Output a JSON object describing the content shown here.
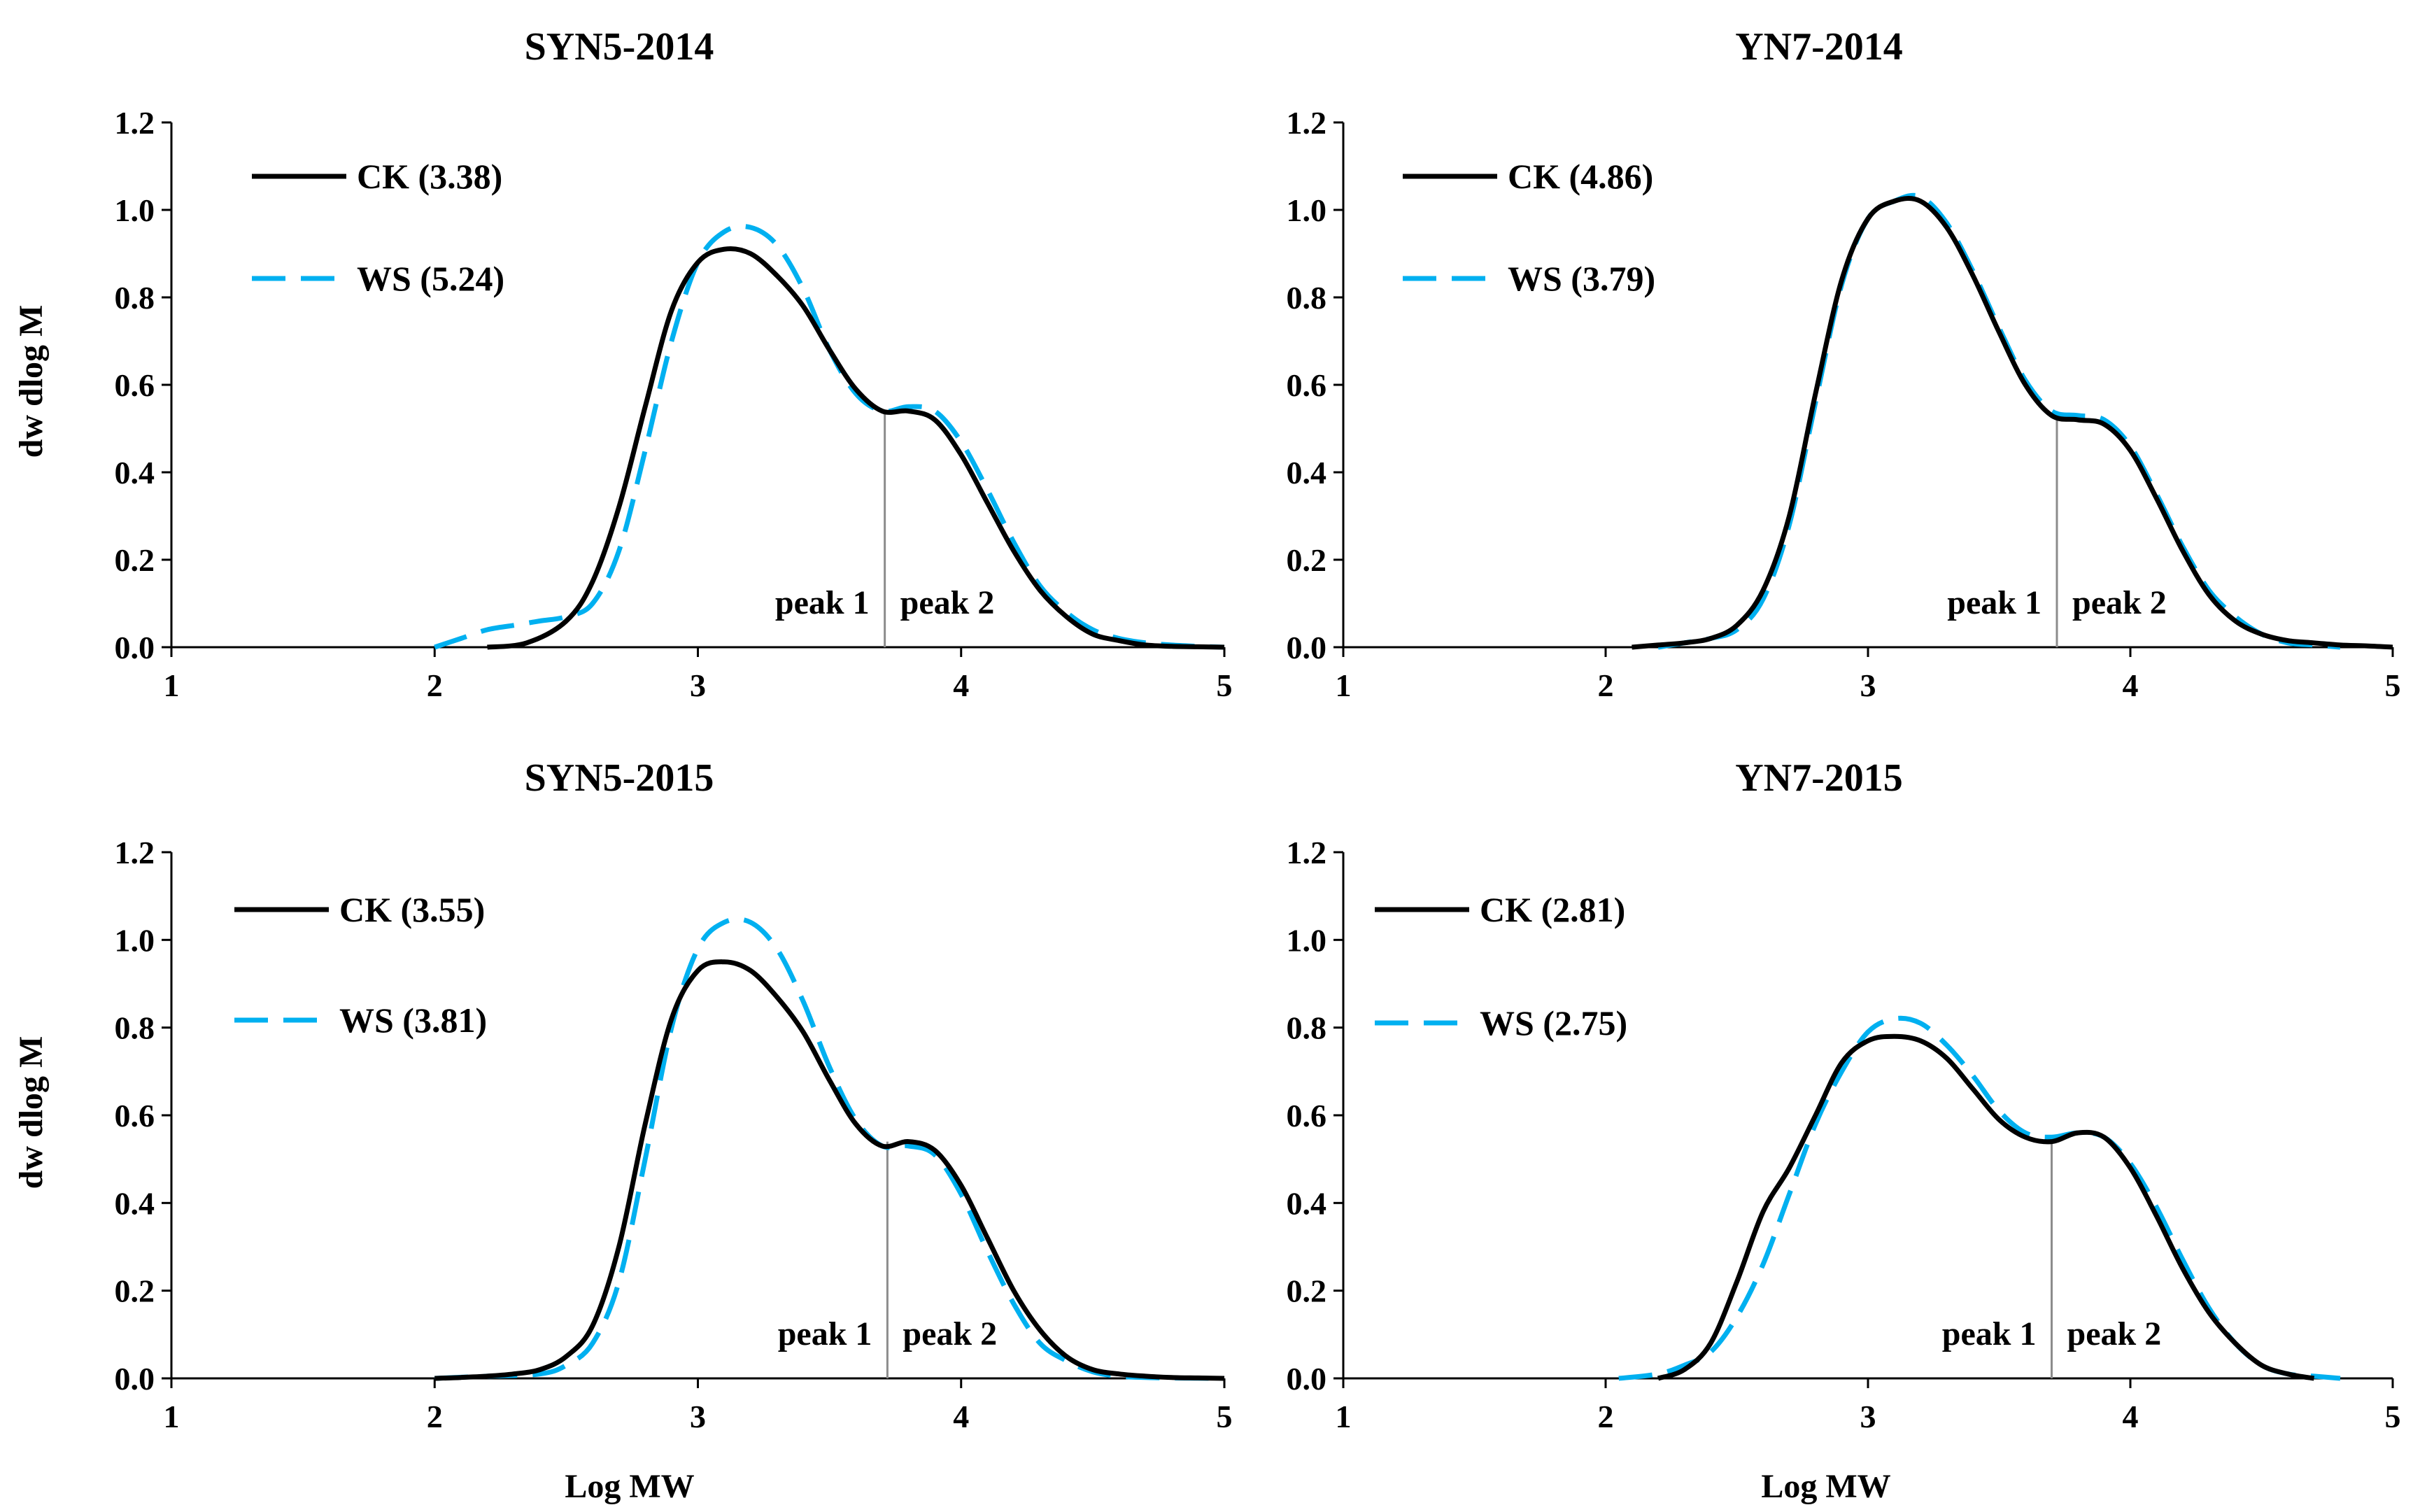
{
  "figure": {
    "ylabel": "dw dlog M",
    "xlabel": "Log MW"
  },
  "colors": {
    "ck": "#000000",
    "ws": "#00B0F0",
    "divider": "#8c8c8c"
  },
  "chart_data": [
    {
      "type": "line",
      "title": "SYN5-2014",
      "xlim": [
        1,
        5
      ],
      "ylim": [
        0,
        1.2
      ],
      "xticks": [
        "1",
        "2",
        "3",
        "4",
        "5"
      ],
      "yticks": [
        "0.0",
        "0.2",
        "0.4",
        "0.6",
        "0.8",
        "1.0",
        "1.2"
      ],
      "legend_position": "top-left",
      "divider_x": 3.71,
      "peak_labels": [
        "peak 1",
        "peak 2"
      ],
      "series": [
        {
          "name": "CK (3.38)",
          "style": "solid",
          "x": [
            2.2,
            2.35,
            2.5,
            2.6,
            2.7,
            2.8,
            2.9,
            3.0,
            3.1,
            3.2,
            3.3,
            3.4,
            3.5,
            3.6,
            3.7,
            3.8,
            3.9,
            4.0,
            4.1,
            4.2,
            4.3,
            4.4,
            4.5,
            4.6,
            4.7,
            4.8,
            4.9,
            5.0
          ],
          "y": [
            0.0,
            0.01,
            0.06,
            0.15,
            0.32,
            0.55,
            0.77,
            0.88,
            0.91,
            0.9,
            0.85,
            0.78,
            0.68,
            0.59,
            0.54,
            0.54,
            0.52,
            0.44,
            0.33,
            0.22,
            0.13,
            0.07,
            0.03,
            0.015,
            0.005,
            0.002,
            0.001,
            0.0
          ]
        },
        {
          "name": "WS (5.24)",
          "style": "dashed",
          "x": [
            2.0,
            2.1,
            2.2,
            2.3,
            2.4,
            2.5,
            2.6,
            2.7,
            2.8,
            2.9,
            3.0,
            3.1,
            3.2,
            3.3,
            3.4,
            3.5,
            3.6,
            3.7,
            3.8,
            3.9,
            4.0,
            4.1,
            4.2,
            4.3,
            4.4,
            4.5,
            4.6,
            4.7,
            4.8,
            4.9,
            5.0
          ],
          "y": [
            0.0,
            0.02,
            0.04,
            0.05,
            0.06,
            0.07,
            0.1,
            0.22,
            0.45,
            0.7,
            0.88,
            0.95,
            0.96,
            0.92,
            0.82,
            0.68,
            0.58,
            0.54,
            0.55,
            0.54,
            0.47,
            0.36,
            0.24,
            0.14,
            0.08,
            0.04,
            0.02,
            0.01,
            0.005,
            0.002,
            0.0
          ]
        }
      ]
    },
    {
      "type": "line",
      "title": "YN7-2014",
      "xlim": [
        1,
        5
      ],
      "ylim": [
        0,
        1.2
      ],
      "xticks": [
        "1",
        "2",
        "3",
        "4",
        "5"
      ],
      "yticks": [
        "0.0",
        "0.2",
        "0.4",
        "0.6",
        "0.8",
        "1.0",
        "1.2"
      ],
      "legend_position": "top-left",
      "divider_x": 3.72,
      "peak_labels": [
        "peak 1",
        "peak 2"
      ],
      "series": [
        {
          "name": "CK (4.86)",
          "style": "solid",
          "x": [
            2.1,
            2.2,
            2.3,
            2.4,
            2.5,
            2.6,
            2.7,
            2.8,
            2.9,
            3.0,
            3.1,
            3.2,
            3.3,
            3.4,
            3.5,
            3.6,
            3.7,
            3.8,
            3.9,
            4.0,
            4.1,
            4.2,
            4.3,
            4.4,
            4.5,
            4.6,
            4.7,
            4.8,
            4.9,
            5.0
          ],
          "y": [
            0.0,
            0.005,
            0.01,
            0.02,
            0.05,
            0.13,
            0.3,
            0.58,
            0.84,
            0.98,
            1.02,
            1.02,
            0.96,
            0.85,
            0.72,
            0.6,
            0.53,
            0.52,
            0.51,
            0.45,
            0.34,
            0.22,
            0.12,
            0.06,
            0.03,
            0.015,
            0.01,
            0.005,
            0.003,
            0.0
          ]
        },
        {
          "name": "WS (3.79)",
          "style": "dashed",
          "x": [
            2.2,
            2.3,
            2.4,
            2.5,
            2.6,
            2.7,
            2.8,
            2.9,
            3.0,
            3.1,
            3.2,
            3.3,
            3.4,
            3.5,
            3.6,
            3.7,
            3.8,
            3.9,
            4.0,
            4.1,
            4.2,
            4.3,
            4.4,
            4.5,
            4.6,
            4.7,
            4.8
          ],
          "y": [
            0.0,
            0.01,
            0.02,
            0.04,
            0.11,
            0.28,
            0.56,
            0.83,
            0.98,
            1.02,
            1.03,
            0.97,
            0.86,
            0.73,
            0.61,
            0.54,
            0.53,
            0.52,
            0.46,
            0.35,
            0.23,
            0.13,
            0.07,
            0.03,
            0.01,
            0.005,
            0.0
          ]
        }
      ]
    },
    {
      "type": "line",
      "title": "SYN5-2015",
      "xlim": [
        1,
        5
      ],
      "ylim": [
        0,
        1.2
      ],
      "xticks": [
        "1",
        "2",
        "3",
        "4",
        "5"
      ],
      "yticks": [
        "0.0",
        "0.2",
        "0.4",
        "0.6",
        "0.8",
        "1.0",
        "1.2"
      ],
      "legend_position": "top-left",
      "divider_x": 3.72,
      "peak_labels": [
        "peak 1",
        "peak 2"
      ],
      "series": [
        {
          "name": "CK (3.55)",
          "style": "solid",
          "x": [
            2.0,
            2.1,
            2.2,
            2.3,
            2.4,
            2.5,
            2.6,
            2.7,
            2.8,
            2.9,
            3.0,
            3.1,
            3.2,
            3.3,
            3.4,
            3.5,
            3.6,
            3.7,
            3.8,
            3.9,
            4.0,
            4.1,
            4.2,
            4.3,
            4.4,
            4.5,
            4.6,
            4.7,
            4.8,
            4.9,
            5.0
          ],
          "y": [
            0.0,
            0.002,
            0.005,
            0.01,
            0.02,
            0.05,
            0.12,
            0.3,
            0.58,
            0.82,
            0.93,
            0.95,
            0.93,
            0.87,
            0.79,
            0.68,
            0.58,
            0.53,
            0.54,
            0.52,
            0.44,
            0.32,
            0.2,
            0.11,
            0.05,
            0.02,
            0.01,
            0.005,
            0.002,
            0.001,
            0.0
          ]
        },
        {
          "name": "WS (3.81)",
          "style": "dashed",
          "x": [
            2.0,
            2.2,
            2.4,
            2.5,
            2.6,
            2.7,
            2.8,
            2.9,
            3.0,
            3.1,
            3.2,
            3.3,
            3.4,
            3.5,
            3.6,
            3.7,
            3.8,
            3.9,
            4.0,
            4.1,
            4.2,
            4.3,
            4.4,
            4.5,
            4.6,
            4.7,
            4.8,
            5.0
          ],
          "y": [
            0.0,
            0.005,
            0.01,
            0.03,
            0.08,
            0.22,
            0.5,
            0.8,
            0.98,
            1.04,
            1.04,
            0.98,
            0.86,
            0.71,
            0.59,
            0.53,
            0.53,
            0.51,
            0.42,
            0.29,
            0.17,
            0.08,
            0.04,
            0.015,
            0.005,
            0.002,
            0.001,
            0.0
          ]
        }
      ]
    },
    {
      "type": "line",
      "title": "YN7-2015",
      "xlim": [
        1,
        5
      ],
      "ylim": [
        0,
        1.2
      ],
      "xticks": [
        "1",
        "2",
        "3",
        "4",
        "5"
      ],
      "yticks": [
        "0.0",
        "0.2",
        "0.4",
        "0.6",
        "0.8",
        "1.0",
        "1.2"
      ],
      "legend_position": "top-left",
      "divider_x": 3.7,
      "peak_labels": [
        "peak 1",
        "peak 2"
      ],
      "series": [
        {
          "name": "CK (2.81)",
          "style": "solid",
          "x": [
            2.2,
            2.3,
            2.4,
            2.5,
            2.6,
            2.7,
            2.8,
            2.9,
            3.0,
            3.1,
            3.2,
            3.3,
            3.4,
            3.5,
            3.6,
            3.7,
            3.8,
            3.9,
            4.0,
            4.1,
            4.2,
            4.3,
            4.4,
            4.5,
            4.6,
            4.7
          ],
          "y": [
            0.0,
            0.02,
            0.08,
            0.22,
            0.38,
            0.48,
            0.6,
            0.72,
            0.77,
            0.78,
            0.77,
            0.73,
            0.66,
            0.59,
            0.55,
            0.54,
            0.56,
            0.55,
            0.48,
            0.37,
            0.25,
            0.15,
            0.08,
            0.03,
            0.01,
            0.0
          ]
        },
        {
          "name": "WS (2.75)",
          "style": "dashed",
          "x": [
            2.05,
            2.2,
            2.3,
            2.4,
            2.5,
            2.6,
            2.7,
            2.8,
            2.9,
            3.0,
            3.1,
            3.2,
            3.3,
            3.4,
            3.5,
            3.6,
            3.7,
            3.8,
            3.9,
            4.0,
            4.1,
            4.2,
            4.3,
            4.4,
            4.5,
            4.6,
            4.7,
            4.8
          ],
          "y": [
            0.0,
            0.01,
            0.03,
            0.06,
            0.14,
            0.26,
            0.42,
            0.58,
            0.7,
            0.79,
            0.82,
            0.81,
            0.76,
            0.69,
            0.61,
            0.56,
            0.55,
            0.56,
            0.55,
            0.49,
            0.39,
            0.27,
            0.16,
            0.08,
            0.03,
            0.01,
            0.005,
            0.0
          ]
        }
      ]
    }
  ]
}
